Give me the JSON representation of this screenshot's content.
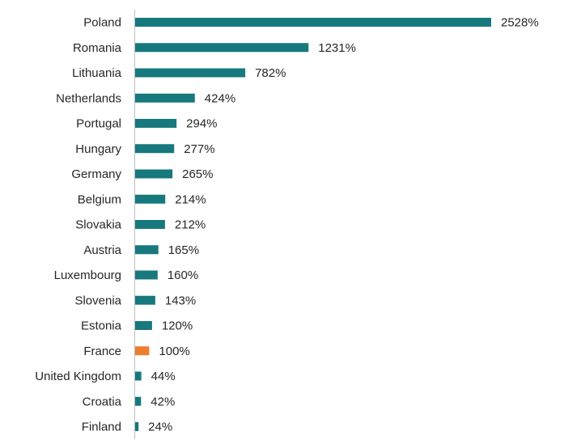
{
  "chart_data": {
    "type": "bar",
    "orientation": "horizontal",
    "title": "",
    "xlabel": "",
    "ylabel": "",
    "categories": [
      "Poland",
      "Romania",
      "Lithuania",
      "Netherlands",
      "Portugal",
      "Hungary",
      "Germany",
      "Belgium",
      "Slovakia",
      "Austria",
      "Luxembourg",
      "Slovenia",
      "Estonia",
      "France",
      "United Kingdom",
      "Croatia",
      "Finland"
    ],
    "values": [
      2528,
      1231,
      782,
      424,
      294,
      277,
      265,
      214,
      212,
      165,
      160,
      143,
      120,
      100,
      44,
      42,
      24
    ],
    "value_labels": [
      "2528%",
      "1231%",
      "782%",
      "424%",
      "294%",
      "277%",
      "265%",
      "214%",
      "212%",
      "165%",
      "160%",
      "143%",
      "120%",
      "100%",
      "44%",
      "42%",
      "24%"
    ],
    "highlight_category": "France",
    "xlim": [
      0,
      2528
    ],
    "grid": false,
    "legend": "none",
    "colors": {
      "bar": "#17787e",
      "highlight": "#ed7d31",
      "axis": "#bfbfbf",
      "text": "#262626"
    }
  }
}
